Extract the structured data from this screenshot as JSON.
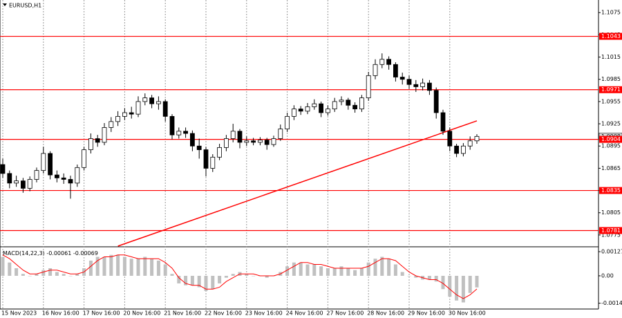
{
  "chart_data": [
    {
      "type": "candlestick",
      "title": "EURUSD,H1",
      "categories": [
        "15 Nov 2023",
        null,
        null,
        null,
        null,
        null,
        "16 Nov 16:00",
        null,
        null,
        null,
        null,
        null,
        "17 Nov 16:00",
        null,
        null,
        null,
        null,
        null,
        "20 Nov 16:00",
        null,
        null,
        null,
        null,
        null,
        "21 Nov 16:00",
        null,
        null,
        null,
        null,
        null,
        "22 Nov 16:00",
        null,
        null,
        null,
        null,
        null,
        "23 Nov 16:00",
        null,
        null,
        null,
        null,
        null,
        "24 Nov 16:00",
        null,
        null,
        null,
        null,
        null,
        "27 Nov 16:00",
        null,
        null,
        null,
        null,
        null,
        "28 Nov 16:00",
        null,
        null,
        null,
        null,
        null,
        "29 Nov 16:00",
        null,
        null,
        null,
        null,
        null,
        "30 Nov 16:00",
        null,
        null,
        null,
        null
      ],
      "open": [
        1.087,
        1.0858,
        1.0845,
        1.0848,
        1.0838,
        1.085,
        1.0862,
        1.0885,
        1.0856,
        1.0852,
        1.085,
        1.0845,
        1.0866,
        1.089,
        1.0905,
        1.09,
        1.092,
        1.0928,
        1.0935,
        1.094,
        1.0938,
        1.0955,
        1.096,
        1.0952,
        1.0955,
        1.0935,
        1.091,
        1.0915,
        1.0912,
        1.0895,
        1.089,
        1.0865,
        1.088,
        1.0893,
        1.0905,
        1.0915,
        1.09,
        1.0902,
        1.09,
        1.0903,
        1.0897,
        1.0905,
        1.0918,
        1.0935,
        1.0945,
        1.0942,
        1.0948,
        1.0952,
        1.094,
        1.0945,
        1.0955,
        1.0957,
        1.095,
        1.0945,
        1.096,
        1.099,
        1.1005,
        1.1012,
        1.1005,
        1.0988,
        1.0985,
        1.0978,
        1.0975,
        1.098,
        1.097,
        1.094,
        1.0915,
        1.0895,
        1.0885,
        1.0895,
        1.0902
      ],
      "high": [
        1.0878,
        1.0862,
        1.0855,
        1.0852,
        1.0854,
        1.0866,
        1.0894,
        1.0888,
        1.0862,
        1.0858,
        1.0855,
        1.087,
        1.0894,
        1.0912,
        1.091,
        1.0926,
        1.0934,
        1.0942,
        1.0946,
        1.0948,
        1.0962,
        1.0966,
        1.0964,
        1.0962,
        1.0958,
        1.0938,
        1.092,
        1.092,
        1.0916,
        1.0905,
        1.0894,
        1.0884,
        1.0898,
        1.091,
        1.0925,
        1.0918,
        1.0908,
        1.0906,
        1.0907,
        1.0906,
        1.0909,
        1.0924,
        1.094,
        1.095,
        1.0949,
        1.0953,
        1.0958,
        1.0955,
        1.095,
        1.096,
        1.0962,
        1.096,
        1.0954,
        1.0964,
        1.0995,
        1.1012,
        1.102,
        1.1016,
        1.1008,
        1.0994,
        1.099,
        1.0984,
        1.0986,
        1.0984,
        1.0974,
        1.0944,
        1.092,
        1.0898,
        1.0899,
        1.0908,
        1.0911
      ],
      "low": [
        1.0852,
        1.0838,
        1.084,
        1.0832,
        1.0834,
        1.0846,
        1.0858,
        1.085,
        1.0846,
        1.0844,
        1.0824,
        1.084,
        1.0862,
        1.0885,
        1.0894,
        1.0896,
        1.0914,
        1.0922,
        1.093,
        1.0932,
        1.0934,
        1.095,
        1.0946,
        1.0944,
        1.0928,
        1.0904,
        1.0905,
        1.0906,
        1.0888,
        1.0878,
        1.0854,
        1.086,
        1.0876,
        1.0888,
        1.09,
        1.0892,
        1.0895,
        1.0896,
        1.0896,
        1.089,
        1.0894,
        1.0902,
        1.0914,
        1.093,
        1.0937,
        1.0938,
        1.0944,
        1.0934,
        1.0936,
        1.0941,
        1.095,
        1.0944,
        1.094,
        1.0941,
        1.0956,
        1.0985,
        1.1,
        1.0998,
        1.0982,
        1.0978,
        1.0972,
        1.0968,
        1.097,
        1.0964,
        1.0932,
        1.091,
        1.0888,
        1.088,
        1.0881,
        1.089,
        1.0898
      ],
      "close": [
        1.0858,
        1.0845,
        1.0848,
        1.0838,
        1.085,
        1.0862,
        1.0885,
        1.0856,
        1.0852,
        1.085,
        1.0845,
        1.0866,
        1.089,
        1.0905,
        1.09,
        1.092,
        1.0928,
        1.0935,
        1.094,
        1.0938,
        1.0955,
        1.096,
        1.0952,
        1.0955,
        1.0935,
        1.091,
        1.0915,
        1.0912,
        1.0895,
        1.089,
        1.0865,
        1.088,
        1.0893,
        1.0905,
        1.0915,
        1.09,
        1.0902,
        1.09,
        1.0903,
        1.0897,
        1.0905,
        1.0918,
        1.0935,
        1.0945,
        1.0942,
        1.0948,
        1.0952,
        1.094,
        1.0945,
        1.0955,
        1.0957,
        1.095,
        1.0945,
        1.096,
        1.099,
        1.1005,
        1.1012,
        1.1005,
        1.0988,
        1.0985,
        1.0978,
        1.0975,
        1.098,
        1.097,
        1.094,
        1.0915,
        1.0895,
        1.0885,
        1.0895,
        1.0902,
        1.0908
      ],
      "up_color": "#ffffff",
      "down_color": "#000000",
      "ylim": [
        1.076,
        1.1092
      ],
      "yticks": [
        1.1075,
        1.1045,
        1.1015,
        1.0985,
        1.0955,
        1.0925,
        1.0895,
        1.0865,
        1.0835,
        1.0805,
        1.0775
      ],
      "grid": true,
      "levels": [
        1.1043,
        1.0971,
        1.0904,
        1.0835,
        1.0781
      ],
      "level_color": "#ff0000",
      "last_price": 1.0908,
      "trend_line": {
        "from_index": 17,
        "from_price": 1.076,
        "to_index": 70,
        "to_price": 1.0929,
        "color": "#ff0000"
      }
    },
    {
      "type": "macd",
      "label": "MACD(14,22,3)",
      "main_value": -0.00061,
      "signal_value": -0.00069,
      "histogram": [
        0.001,
        0.0007,
        0.0004,
        0.0001,
        0.0,
        0.0001,
        0.0003,
        0.0004,
        0.0002,
        0.0001,
        0.0,
        0.0001,
        0.0004,
        0.0008,
        0.001,
        0.001,
        0.0011,
        0.0011,
        0.001,
        0.0009,
        0.0009,
        0.001,
        0.0009,
        0.0008,
        0.0006,
        0.0001,
        -0.0004,
        -0.0005,
        -0.0005,
        -0.0006,
        -0.0008,
        -0.0007,
        -0.0004,
        -0.0001,
        0.0001,
        0.0002,
        0.0001,
        0.0,
        0.0,
        -0.0001,
        0.0,
        0.0002,
        0.0005,
        0.0007,
        0.0007,
        0.0006,
        0.0006,
        0.0005,
        0.0004,
        0.0004,
        0.0005,
        0.0004,
        0.0003,
        0.0004,
        0.0007,
        0.0009,
        0.001,
        0.0009,
        0.0006,
        0.0002,
        0.0,
        -0.0001,
        -0.0002,
        -0.0002,
        -0.0003,
        -0.0007,
        -0.0011,
        -0.0013,
        -0.0014,
        -0.0009,
        -0.00061
      ],
      "signal": [
        0.0011,
        0.0009,
        0.0006,
        0.0003,
        0.0001,
        0.0001,
        0.0002,
        0.0003,
        0.0003,
        0.0002,
        0.0001,
        0.0001,
        0.0002,
        0.0005,
        0.0008,
        0.001,
        0.001,
        0.0011,
        0.0011,
        0.001,
        0.0009,
        0.0009,
        0.0009,
        0.0009,
        0.0007,
        0.0004,
        -0.0001,
        -0.0004,
        -0.0005,
        -0.0005,
        -0.0007,
        -0.0007,
        -0.0006,
        -0.0003,
        -0.0001,
        0.0001,
        0.0001,
        0.0001,
        0.0,
        0.0,
        0.0,
        0.0001,
        0.0003,
        0.0005,
        0.0007,
        0.0007,
        0.0006,
        0.0006,
        0.0005,
        0.0004,
        0.0004,
        0.0004,
        0.0004,
        0.0004,
        0.0005,
        0.0007,
        0.0009,
        0.0009,
        0.0008,
        0.0005,
        0.0002,
        0.0,
        -0.0001,
        -0.0002,
        -0.0002,
        -0.0004,
        -0.0007,
        -0.001,
        -0.0012,
        -0.001,
        -0.00069
      ],
      "histogram_color": "#c0c0c0",
      "signal_color": "#ff0000",
      "ylim": [
        -0.00171,
        0.00149
      ],
      "yticks": [
        0.00127,
        {
          "value": 0,
          "label": "0.00"
        },
        -0.00144
      ]
    }
  ]
}
